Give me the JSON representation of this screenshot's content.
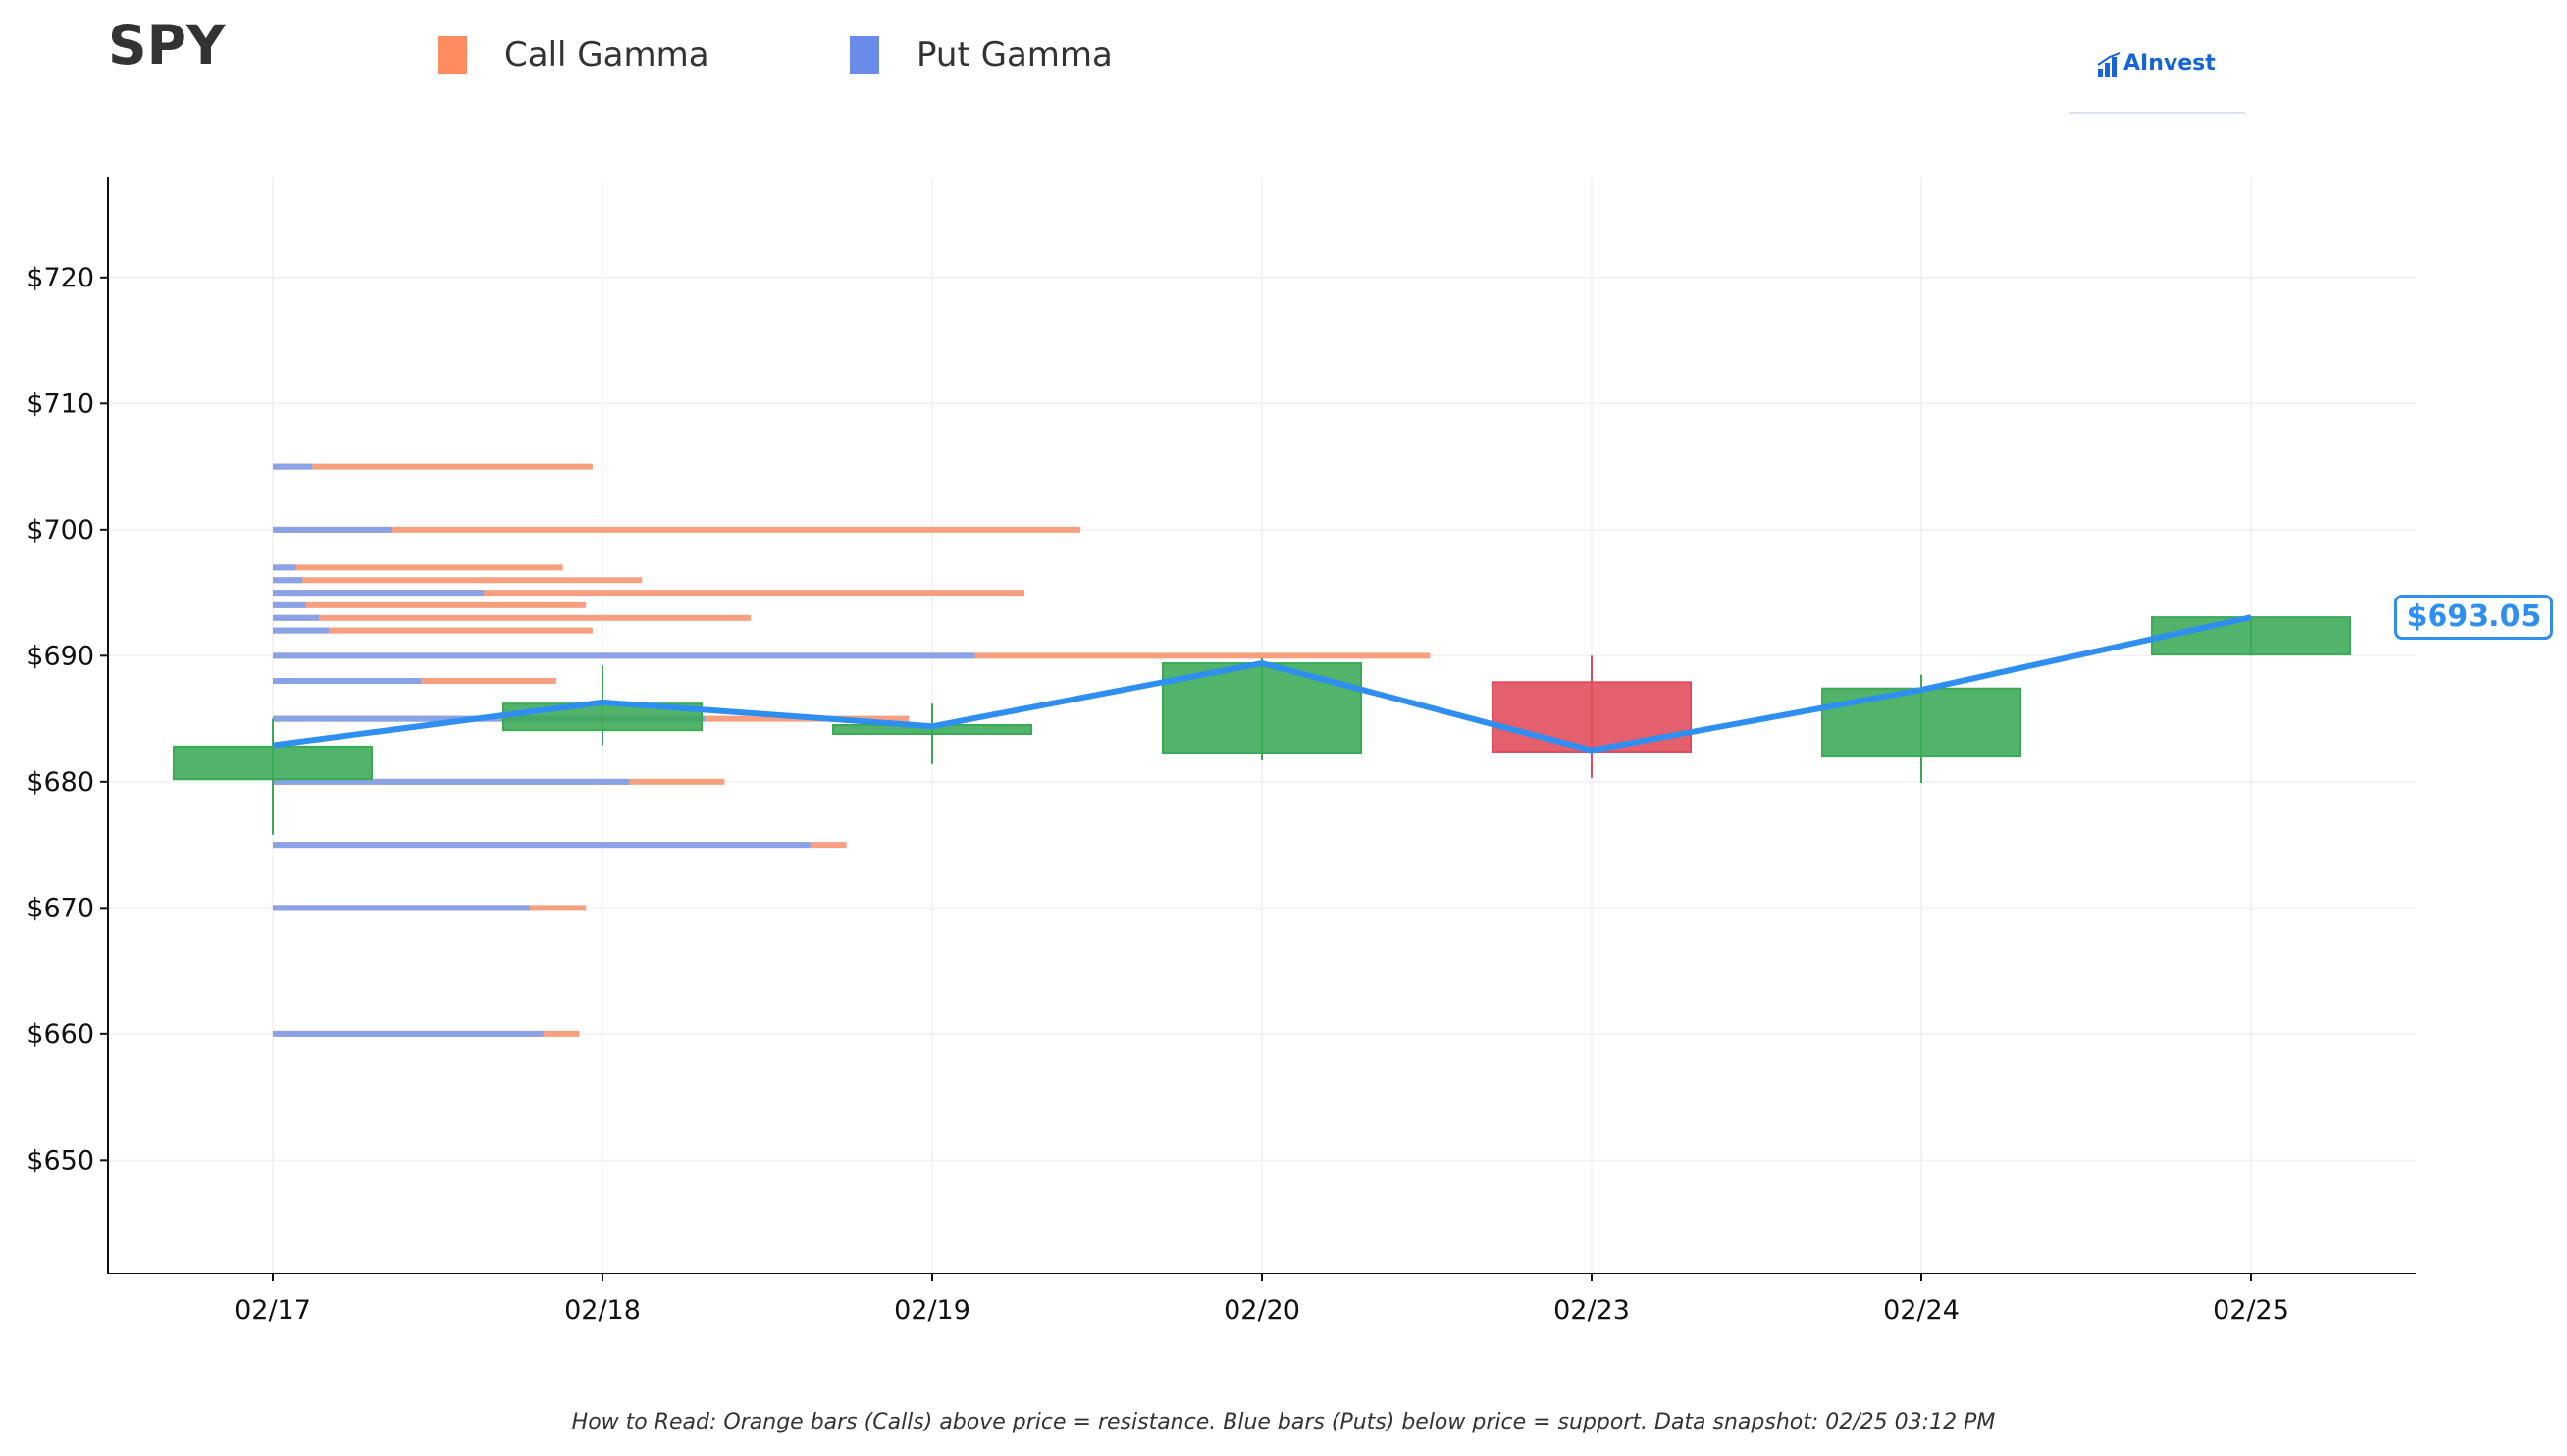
{
  "header": {
    "ticker": "SPY"
  },
  "legend": [
    {
      "label": "Call Gamma",
      "color": "#ff8c5f"
    },
    {
      "label": "Put Gamma",
      "color": "#6b8be8"
    }
  ],
  "logo": {
    "text": "AInvest"
  },
  "footer": {
    "text": "How to Read: Orange bars (Calls) above price = resistance. Blue bars (Puts) below price = support. Data snapshot: 02/25 03:12 PM"
  },
  "price_tag": {
    "text": "$693.05"
  },
  "colors": {
    "up": "#3aaa55",
    "down": "#e04a5a",
    "price_line": "#2f8ff0",
    "call": "#f7a07f",
    "put": "#8aa2e6"
  },
  "chart_data": {
    "type": "candlestick",
    "categories": [
      "02/17",
      "02/18",
      "02/19",
      "02/20",
      "02/23",
      "02/24",
      "02/25"
    ],
    "ylim": [
      641,
      728
    ],
    "yticks": [
      650,
      660,
      670,
      680,
      690,
      700,
      710,
      720
    ],
    "ytick_labels": [
      "$650",
      "$660",
      "$670",
      "$680",
      "$690",
      "$700",
      "$710",
      "$720"
    ],
    "candles": [
      {
        "open": 680.2,
        "close": 682.8,
        "high": 685.0,
        "low": 675.8
      },
      {
        "open": 684.1,
        "close": 686.2,
        "high": 689.2,
        "low": 682.9
      },
      {
        "open": 683.8,
        "close": 684.5,
        "high": 686.2,
        "low": 681.4
      },
      {
        "open": 682.3,
        "close": 689.4,
        "high": 689.8,
        "low": 681.7
      },
      {
        "open": 687.9,
        "close": 682.4,
        "high": 690.0,
        "low": 680.3
      },
      {
        "open": 682.0,
        "close": 687.4,
        "high": 688.5,
        "low": 679.9
      },
      {
        "open": 690.1,
        "close": 693.05,
        "high": 693.1,
        "low": 690.0
      }
    ],
    "price_line": [
      682.9,
      686.3,
      684.4,
      689.4,
      682.5,
      687.3,
      693.05
    ],
    "gamma_profile": [
      {
        "strike": 705,
        "put_end": 0.12,
        "call_end": 0.97
      },
      {
        "strike": 700,
        "put_end": 0.36,
        "call_end": 2.45
      },
      {
        "strike": 697,
        "put_end": 0.07,
        "call_end": 0.88
      },
      {
        "strike": 696,
        "put_end": 0.09,
        "call_end": 1.12
      },
      {
        "strike": 695,
        "put_end": 0.64,
        "call_end": 2.28
      },
      {
        "strike": 694,
        "put_end": 0.1,
        "call_end": 0.95
      },
      {
        "strike": 693,
        "put_end": 0.14,
        "call_end": 1.45
      },
      {
        "strike": 692,
        "put_end": 0.17,
        "call_end": 0.97
      },
      {
        "strike": 690,
        "put_end": 2.13,
        "call_end": 3.51
      },
      {
        "strike": 688,
        "put_end": 0.45,
        "call_end": 0.86
      },
      {
        "strike": 685,
        "put_end": 1.31,
        "call_end": 1.93
      },
      {
        "strike": 680,
        "put_end": 1.08,
        "call_end": 1.37
      },
      {
        "strike": 675,
        "put_end": 1.63,
        "call_end": 1.74
      },
      {
        "strike": 670,
        "put_end": 0.78,
        "call_end": 0.95
      },
      {
        "strike": 660,
        "put_end": 0.82,
        "call_end": 0.93
      }
    ]
  }
}
